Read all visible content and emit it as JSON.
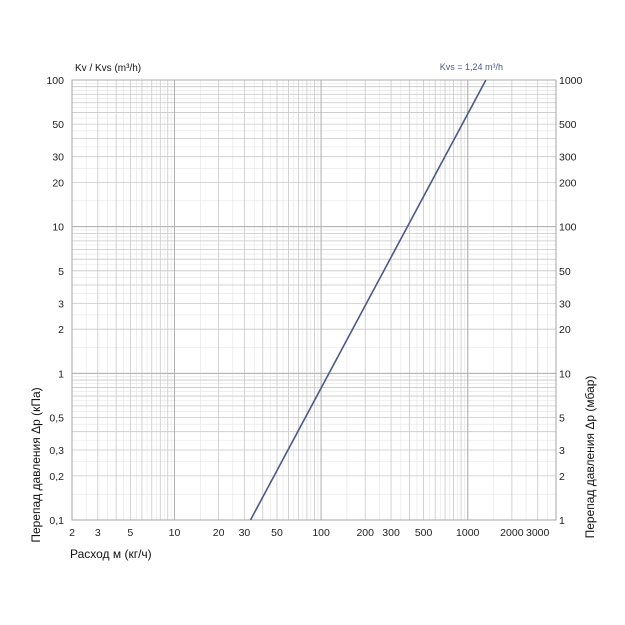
{
  "chart_data": {
    "type": "line",
    "top_left_label": "Kv / Kvs (m³/h)",
    "xlabel": "Расход м (кг/ч)",
    "ylabel_left": "Перепад давления Δp (кПа)",
    "ylabel_right": "Перепад давления Δp (мбар)",
    "x_scale": "log",
    "y_scale": "log",
    "xlim": [
      2,
      4000
    ],
    "ylim": [
      0.1,
      100
    ],
    "grid": true,
    "x_ticks": [
      {
        "value": 2,
        "label": "2"
      },
      {
        "value": 3,
        "label": "3"
      },
      {
        "value": 5,
        "label": "5"
      },
      {
        "value": 10,
        "label": "10"
      },
      {
        "value": 20,
        "label": "20"
      },
      {
        "value": 30,
        "label": "30"
      },
      {
        "value": 50,
        "label": "50"
      },
      {
        "value": 100,
        "label": "100"
      },
      {
        "value": 200,
        "label": "200"
      },
      {
        "value": 300,
        "label": "300"
      },
      {
        "value": 500,
        "label": "500"
      },
      {
        "value": 1000,
        "label": "1000"
      },
      {
        "value": 2000,
        "label": "2000"
      },
      {
        "value": 3000,
        "label": "3000"
      }
    ],
    "y_ticks_left": [
      {
        "value": 0.1,
        "label": "0,1"
      },
      {
        "value": 0.2,
        "label": "0,2"
      },
      {
        "value": 0.3,
        "label": "0,3"
      },
      {
        "value": 0.5,
        "label": "0,5"
      },
      {
        "value": 1,
        "label": "1"
      },
      {
        "value": 2,
        "label": "2"
      },
      {
        "value": 3,
        "label": "3"
      },
      {
        "value": 5,
        "label": "5"
      },
      {
        "value": 10,
        "label": "10"
      },
      {
        "value": 20,
        "label": "20"
      },
      {
        "value": 30,
        "label": "30"
      },
      {
        "value": 50,
        "label": "50"
      },
      {
        "value": 100,
        "label": "100"
      }
    ],
    "y_ticks_right": [
      {
        "value": 0.1,
        "label": "1"
      },
      {
        "value": 0.2,
        "label": "2"
      },
      {
        "value": 0.3,
        "label": "3"
      },
      {
        "value": 0.5,
        "label": "5"
      },
      {
        "value": 1,
        "label": "10"
      },
      {
        "value": 2,
        "label": "20"
      },
      {
        "value": 3,
        "label": "30"
      },
      {
        "value": 5,
        "label": "50"
      },
      {
        "value": 10,
        "label": "100"
      },
      {
        "value": 20,
        "label": "200"
      },
      {
        "value": 30,
        "label": "300"
      },
      {
        "value": 50,
        "label": "500"
      },
      {
        "value": 100,
        "label": "1000"
      }
    ],
    "series": [
      {
        "name": "Kvs = 1,24 m³/h",
        "color": "#4a5a86",
        "x": [
          33,
          1330
        ],
        "y": [
          0.1,
          100
        ]
      }
    ]
  }
}
